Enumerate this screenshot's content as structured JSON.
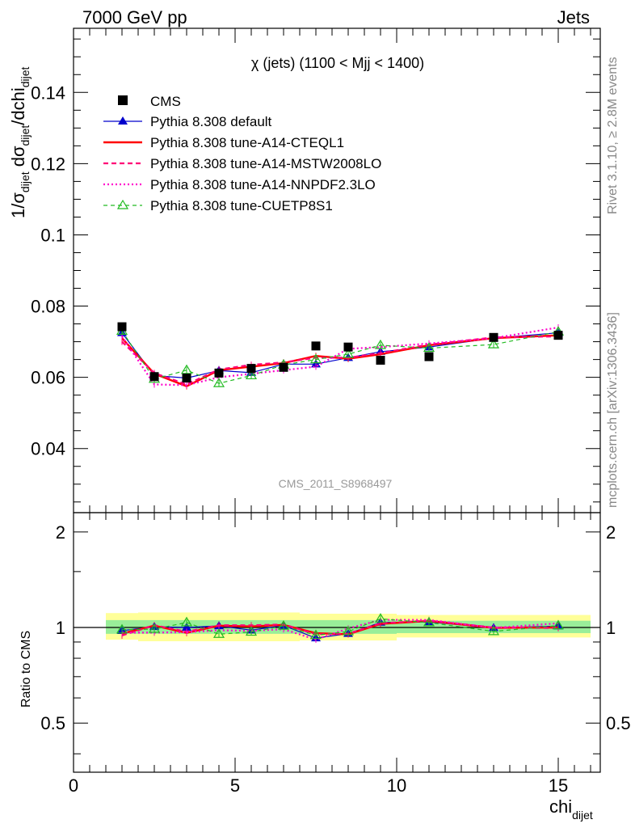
{
  "header": {
    "left": "7000 GeV pp",
    "right": "Jets"
  },
  "side_text": {
    "rivet": "Rivet 3.1.10, ≥ 2.8M events",
    "mcplots": "mcplots.cern.ch [arXiv:1306.3436]"
  },
  "colors": {
    "cms": "#000000",
    "default": "#0000cc",
    "cteql1": "#ff0000",
    "mstw": "#ff0077",
    "nnpdf": "#ff00cc",
    "cuetp8s1": "#22bb22",
    "band_inner": "#99ee99",
    "band_outer": "#ffff99",
    "watermark": "#999999"
  },
  "chart_data": {
    "type": "line",
    "title": "χ (jets) (1100 < Mjj < 1400)",
    "watermark": "CMS_2011_S8968497",
    "xlabel": {
      "main": "chi",
      "sub": "dijet"
    },
    "ylabel": {
      "p1": "1/σ",
      "s1": "dijet",
      "p2": " dσ",
      "s2": "dijet",
      "p3": "/dchi",
      "s3": "dijet"
    },
    "ratio_ylabel": "Ratio to CMS",
    "xlim": [
      0,
      16.3
    ],
    "ylim": [
      0.022,
      0.158
    ],
    "ratio_ylim": [
      0.35,
      2.3
    ],
    "x_ticks": [
      "0",
      "5",
      "10",
      "15"
    ],
    "y_ticks": [
      "0.04",
      "0.06",
      "0.08",
      "0.1",
      "0.12",
      "0.14"
    ],
    "ratio_ticks": [
      "0.5",
      "1",
      "2"
    ],
    "bins": [
      [
        1,
        2
      ],
      [
        2,
        3
      ],
      [
        3,
        4
      ],
      [
        4,
        5
      ],
      [
        5,
        6
      ],
      [
        6,
        7
      ],
      [
        7,
        8
      ],
      [
        8,
        9
      ],
      [
        9,
        10
      ],
      [
        10,
        12
      ],
      [
        12,
        14
      ],
      [
        14,
        16
      ]
    ],
    "x": [
      1.5,
      2.5,
      3.5,
      4.5,
      5.5,
      6.5,
      7.5,
      8.5,
      9.5,
      11,
      13,
      15
    ],
    "data": {
      "name": "CMS",
      "values": [
        0.0742,
        0.0602,
        0.0598,
        0.0612,
        0.0625,
        0.0628,
        0.0688,
        0.0685,
        0.0648,
        0.0658,
        0.0712,
        0.0718
      ]
    },
    "band_inner": [
      [
        0.955,
        1.055
      ],
      [
        0.955,
        1.055
      ],
      [
        0.955,
        1.055
      ],
      [
        0.955,
        1.055
      ],
      [
        0.955,
        1.055
      ],
      [
        0.955,
        1.055
      ],
      [
        0.955,
        1.055
      ],
      [
        0.955,
        1.055
      ],
      [
        0.955,
        1.055
      ],
      [
        0.96,
        1.05
      ],
      [
        0.96,
        1.05
      ],
      [
        0.96,
        1.05
      ]
    ],
    "band_outer": [
      [
        0.915,
        1.11
      ],
      [
        0.905,
        1.115
      ],
      [
        0.905,
        1.115
      ],
      [
        0.905,
        1.115
      ],
      [
        0.905,
        1.115
      ],
      [
        0.905,
        1.115
      ],
      [
        0.91,
        1.105
      ],
      [
        0.91,
        1.105
      ],
      [
        0.91,
        1.105
      ],
      [
        0.93,
        1.095
      ],
      [
        0.93,
        1.095
      ],
      [
        0.93,
        1.095
      ]
    ],
    "series": [
      {
        "name": "Pythia 8.308 default",
        "key": "default",
        "values": [
          0.0725,
          0.0605,
          0.0598,
          0.0619,
          0.0613,
          0.0637,
          0.0637,
          0.0655,
          0.0672,
          0.0685,
          0.071,
          0.0725
        ]
      },
      {
        "name": "Pythia 8.308 tune-A14-CTEQL1",
        "key": "cteql1",
        "values": [
          0.071,
          0.061,
          0.0575,
          0.062,
          0.063,
          0.064,
          0.066,
          0.0652,
          0.0665,
          0.069,
          0.071,
          0.0718
        ]
      },
      {
        "name": "Pythia 8.308 tune-A14-MSTW2008LO",
        "key": "mstw",
        "values": [
          0.07,
          0.0612,
          0.058,
          0.0622,
          0.0635,
          0.0642,
          0.0655,
          0.0655,
          0.0668,
          0.0692,
          0.0712,
          0.0715
        ]
      },
      {
        "name": "Pythia 8.308 tune-A14-NNPDF2.3LO",
        "key": "nnpdf",
        "values": [
          0.0715,
          0.058,
          0.0578,
          0.06,
          0.061,
          0.062,
          0.063,
          0.068,
          0.0685,
          0.0695,
          0.071,
          0.074
        ]
      },
      {
        "name": "Pythia 8.308 tune-CUETP8S1",
        "key": "cuetp8s1",
        "values": [
          0.073,
          0.0595,
          0.062,
          0.0583,
          0.0605,
          0.0635,
          0.065,
          0.0665,
          0.069,
          0.0682,
          0.0692,
          0.0728
        ]
      }
    ]
  }
}
